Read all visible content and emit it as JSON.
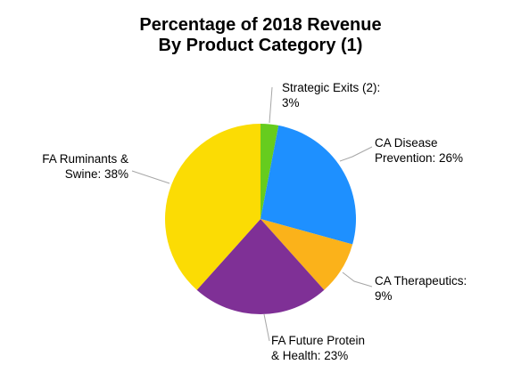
{
  "chart_data": {
    "type": "pie",
    "title": [
      "Percentage of 2018 Revenue",
      "By Product Category (1)"
    ],
    "slices": [
      {
        "label": [
          "Strategic Exits (2):",
          "3%"
        ],
        "value": 3,
        "color": "#66cc1e"
      },
      {
        "label": [
          "CA Disease",
          "Prevention: 26%"
        ],
        "value": 26,
        "color": "#1e90ff"
      },
      {
        "label": [
          "CA Therapeutics:",
          "9%"
        ],
        "value": 9,
        "color": "#fbb21a"
      },
      {
        "label": [
          "FA Future Protein",
          "& Health: 23%"
        ],
        "value": 23,
        "color": "#7f3096"
      },
      {
        "label": [
          "FA Ruminants &",
          "Swine: 38%"
        ],
        "value": 38,
        "color": "#fbdc04"
      }
    ],
    "start_angle_deg": 0,
    "direction": "clockwise",
    "legend": "none"
  }
}
